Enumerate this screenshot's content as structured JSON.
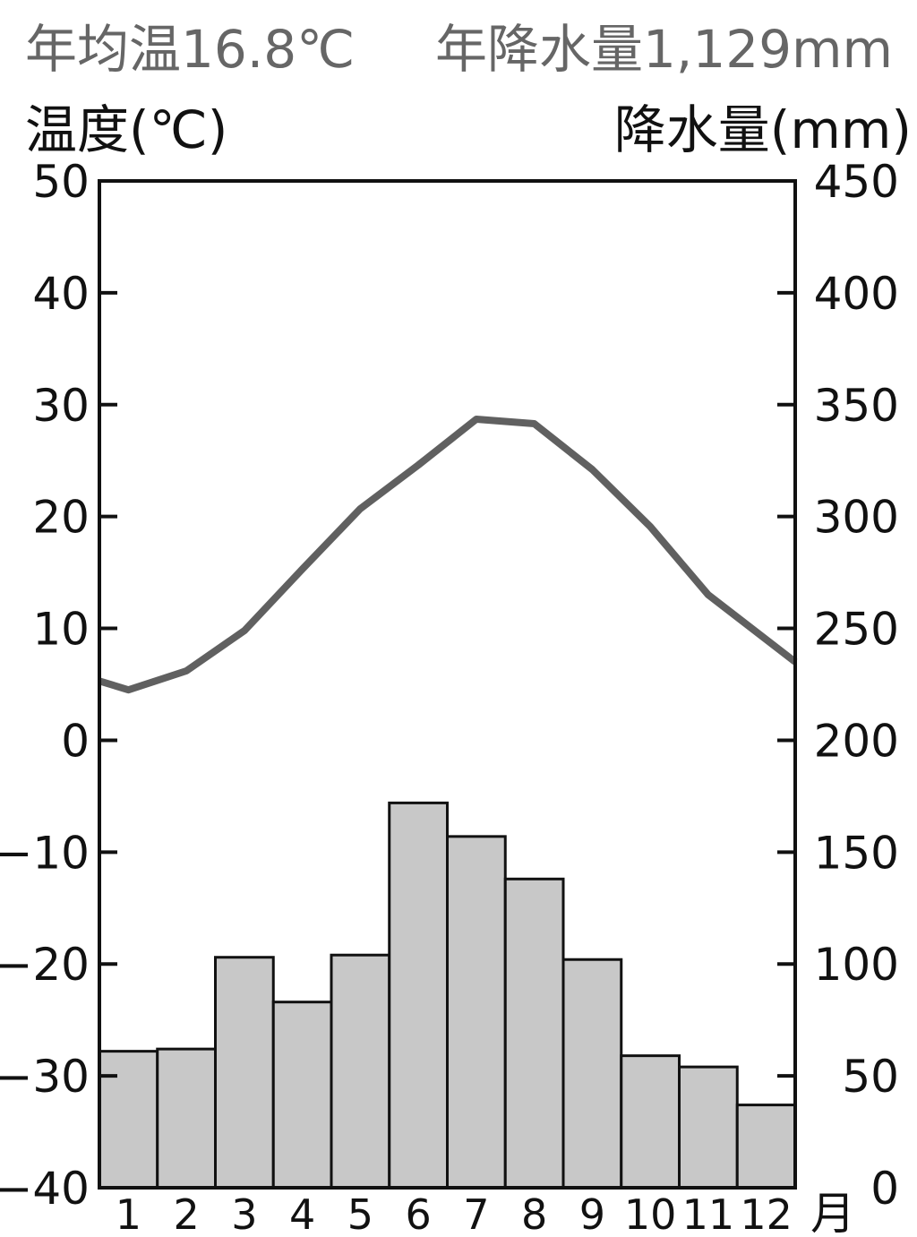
{
  "summary": {
    "temperature": "年均温16.8℃",
    "precipitation": "年降水量1,129mm"
  },
  "axes": {
    "temperature_title": "温度(℃)",
    "precipitation_title": "降水量(mm)",
    "month_unit": "月"
  },
  "colors": {
    "temperature_line": "#606060",
    "precipitation_bar": "#c8c8c8",
    "frame": "#111111"
  },
  "chart_data": {
    "type": "bar+line",
    "categories": [
      "1",
      "2",
      "3",
      "4",
      "5",
      "6",
      "7",
      "8",
      "9",
      "10",
      "11",
      "12"
    ],
    "series": [
      {
        "type": "bar",
        "axis": "right",
        "values": [
          61,
          62,
          103,
          83,
          104,
          172,
          157,
          138,
          102,
          59,
          54,
          37
        ]
      },
      {
        "type": "line",
        "axis": "left",
        "values": [
          4.5,
          6.2,
          9.8,
          15.3,
          20.7,
          24.6,
          28.7,
          28.3,
          24.2,
          19.1,
          13.0,
          7.0
        ]
      }
    ],
    "left_axis": {
      "ylim": [
        -40,
        50
      ],
      "ticks": [
        -40,
        -30,
        -20,
        -10,
        0,
        10,
        20,
        30,
        40,
        50
      ]
    },
    "right_axis": {
      "ylim": [
        0,
        450
      ],
      "ticks": [
        0,
        50,
        100,
        150,
        200,
        250,
        300,
        350,
        400,
        450
      ]
    },
    "endpoints": {
      "start_temperature": 5.3,
      "end_temperature": 6.2
    }
  }
}
